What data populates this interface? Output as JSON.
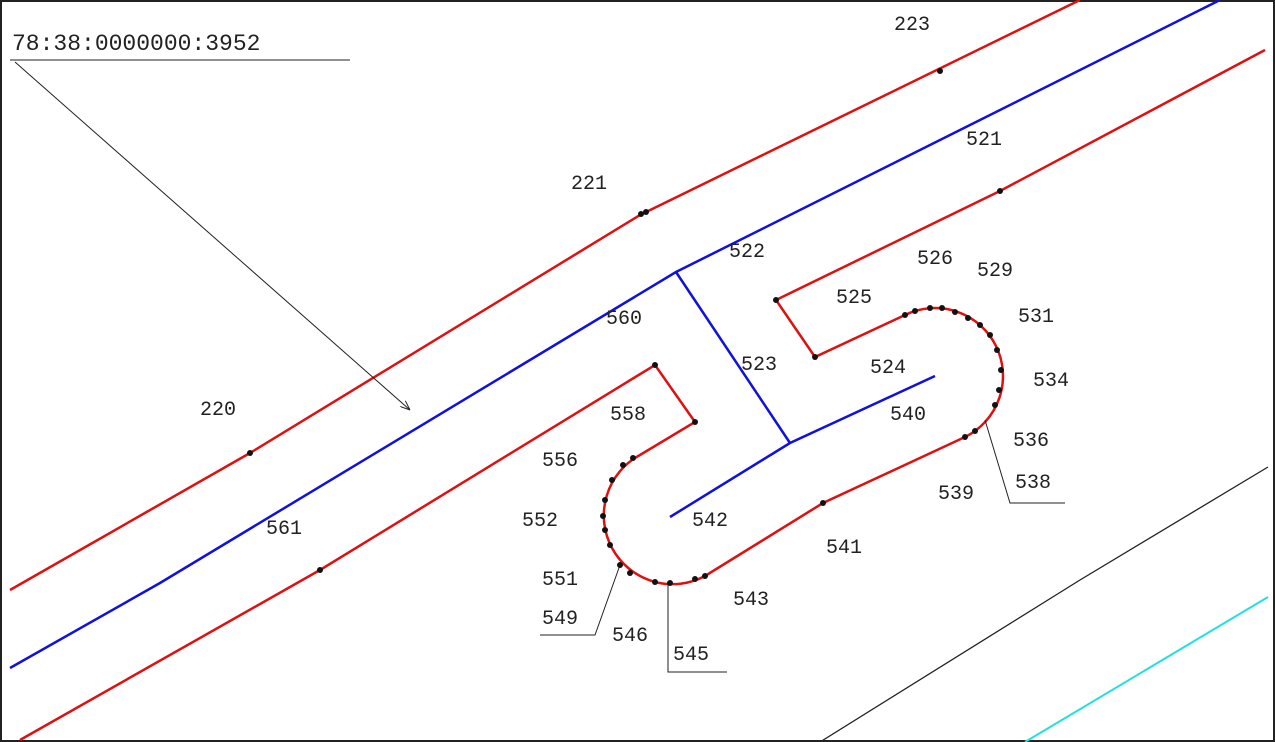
{
  "title": "78:38:0000000:3952",
  "labels": [
    "223",
    "521",
    "221",
    "522",
    "526",
    "529",
    "525",
    "531",
    "560",
    "523",
    "524",
    "534",
    "220",
    "558",
    "540",
    "536",
    "556",
    "538",
    "539",
    "552",
    "542",
    "561",
    "541",
    "551",
    "543",
    "549",
    "546",
    "545"
  ]
}
